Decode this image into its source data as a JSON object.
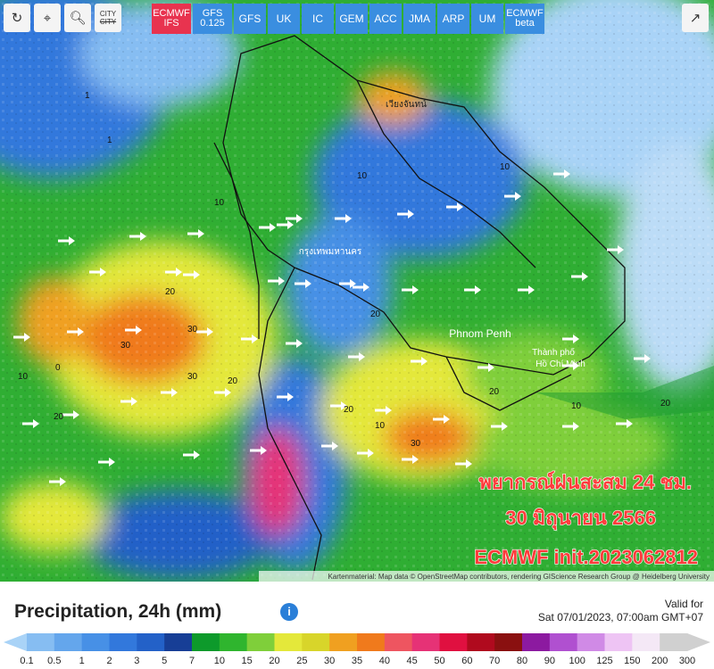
{
  "toolbar": {
    "city_button": [
      "CITY",
      "CITY"
    ],
    "models": [
      {
        "lines": [
          "ECMWF",
          "IFS"
        ],
        "active": true
      },
      {
        "lines": [
          "GFS",
          "0.125"
        ],
        "active": false
      },
      {
        "lines": [
          "GFS"
        ],
        "active": false
      },
      {
        "lines": [
          "UK"
        ],
        "active": false
      },
      {
        "lines": [
          "IC"
        ],
        "active": false
      },
      {
        "lines": [
          "GEM"
        ],
        "active": false
      },
      {
        "lines": [
          "ACC"
        ],
        "active": false
      },
      {
        "lines": [
          "JMA"
        ],
        "active": false
      },
      {
        "lines": [
          "ARP"
        ],
        "active": false
      },
      {
        "lines": [
          "UM"
        ],
        "active": false
      },
      {
        "lines": [
          "ECMWF",
          "beta"
        ],
        "active": false
      }
    ]
  },
  "map": {
    "place_labels": [
      "Phnom Penh",
      "Thành phố",
      "Hồ Chí Minh",
      "กรุงเทพมหานคร",
      "เวียงจันทน์"
    ],
    "contour_labels": [
      "1",
      "1",
      "10",
      "10",
      "10",
      "10",
      "10",
      "20",
      "20",
      "20",
      "30",
      "30",
      "30",
      "30",
      "20",
      "20",
      "20",
      "20",
      "10",
      "0"
    ],
    "overlay": [
      "พยากรณ์ฝนสะสม 24 ชม.",
      "30 มิถุนายน 2566",
      "ECMWF init.2023062812"
    ],
    "attribution": "Kartenmaterial: Map data © OpenStreetMap contributors, rendering GIScience Research Group @ Heidelberg University"
  },
  "legend": {
    "title": "Precipitation, 24h (mm)",
    "valid_label": "Valid for",
    "valid_time": "Sat 07/01/2023, 07:00am GMT+07",
    "ticks": [
      "0.1",
      "0.5",
      "1",
      "2",
      "3",
      "5",
      "7",
      "10",
      "15",
      "20",
      "25",
      "30",
      "35",
      "40",
      "45",
      "50",
      "60",
      "70",
      "80",
      "90",
      "100",
      "125",
      "150",
      "200",
      "300"
    ],
    "colors": [
      "#a9d3f7",
      "#86bdf2",
      "#64a6ec",
      "#4790e6",
      "#3278dc",
      "#2361c8",
      "#173e96",
      "#0d9a2b",
      "#2fb52e",
      "#7fcf3a",
      "#e4e83a",
      "#d8d52a",
      "#f0a020",
      "#f07a1c",
      "#ee5560",
      "#e63276",
      "#e01040",
      "#b00a1e",
      "#8a1010",
      "#8c1aa0",
      "#b050d0",
      "#d08ae6",
      "#eec4f4",
      "#f4e8f6",
      "#d0d0d0"
    ]
  }
}
